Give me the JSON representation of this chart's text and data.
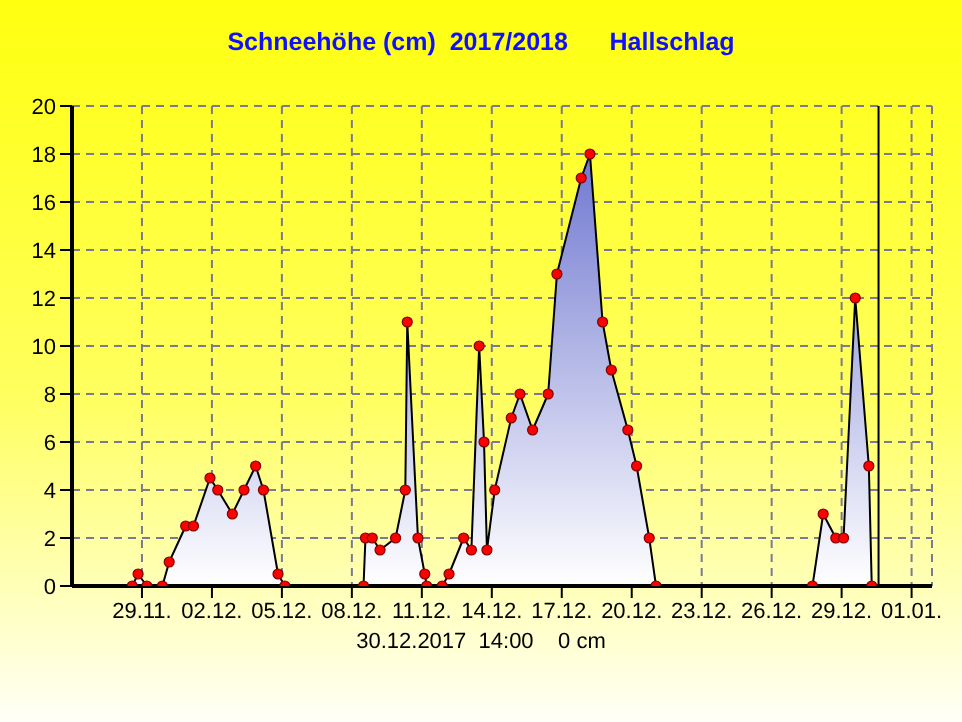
{
  "chart_data": {
    "type": "area",
    "title": "Schneehöhe (cm)  2017/2018      Hallschlag",
    "x": [
      "2017-11-28T14:00",
      "2017-11-28T20:00",
      "2017-11-29T05:00",
      "2017-11-29T21:00",
      "2017-11-30T04:00",
      "2017-11-30T21:00",
      "2017-12-01T05:00",
      "2017-12-01T22:00",
      "2017-12-02T06:00",
      "2017-12-02T21:00",
      "2017-12-03T09:00",
      "2017-12-03T21:00",
      "2017-12-04T05:00",
      "2017-12-04T20:00",
      "2017-12-05T03:00",
      "2017-12-08T12:00",
      "2017-12-08T14:00",
      "2017-12-08T21:00",
      "2017-12-09T05:00",
      "2017-12-09T21:00",
      "2017-12-10T07:00",
      "2017-12-10T09:00",
      "2017-12-10T20:00",
      "2017-12-11T03:00",
      "2017-12-11T05:00",
      "2017-12-11T21:00",
      "2017-12-12T04:00",
      "2017-12-12T19:00",
      "2017-12-13T03:00",
      "2017-12-13T11:00",
      "2017-12-13T16:00",
      "2017-12-13T19:00",
      "2017-12-14T03:00",
      "2017-12-14T20:00",
      "2017-12-15T05:00",
      "2017-12-15T18:00",
      "2017-12-16T10:00",
      "2017-12-16T19:00",
      "2017-12-17T20:00",
      "2017-12-18T05:00",
      "2017-12-18T18:00",
      "2017-12-19T03:00",
      "2017-12-19T20:00",
      "2017-12-20T05:00",
      "2017-12-20T18:00",
      "2017-12-21T01:00",
      "2017-12-27T18:00",
      "2017-12-28T05:00",
      "2017-12-28T18:00",
      "2017-12-29T02:00",
      "2017-12-29T14:00",
      "2017-12-30T04:00",
      "2017-12-30T07:00"
    ],
    "values": [
      0,
      0.5,
      0,
      0,
      1,
      2.5,
      2.5,
      4.5,
      4,
      3,
      4,
      5,
      4,
      0.5,
      0,
      0,
      2,
      2,
      1.5,
      2,
      4,
      11,
      2,
      0.5,
      0,
      0,
      0.5,
      2,
      1.5,
      10,
      6,
      1.5,
      4,
      7,
      8,
      6.5,
      8,
      13,
      17,
      18,
      11,
      9,
      6.5,
      5,
      2,
      0,
      0,
      3,
      2,
      2,
      12,
      5,
      0
    ],
    "color": "#7078d0",
    "marker": "circle",
    "xlim": [
      "2017-11-26T00:00",
      "2018-01-01T21:00"
    ],
    "xticks": [
      {
        "value": "2017-11-29",
        "label": "29.11."
      },
      {
        "value": "2017-12-02",
        "label": "02.12."
      },
      {
        "value": "2017-12-05",
        "label": "05.12."
      },
      {
        "value": "2017-12-08",
        "label": "08.12."
      },
      {
        "value": "2017-12-11",
        "label": "11.12."
      },
      {
        "value": "2017-12-14",
        "label": "14.12."
      },
      {
        "value": "2017-12-17",
        "label": "17.12."
      },
      {
        "value": "2017-12-20",
        "label": "20.12."
      },
      {
        "value": "2017-12-23",
        "label": "23.12."
      },
      {
        "value": "2017-12-26",
        "label": "26.12."
      },
      {
        "value": "2017-12-29",
        "label": "29.12."
      },
      {
        "value": "2018-01-01",
        "label": "01.01."
      }
    ],
    "ylim": [
      0,
      20
    ],
    "yticks": [
      0,
      2,
      4,
      6,
      8,
      10,
      12,
      14,
      16,
      18,
      20
    ],
    "grid": true,
    "ref_lines": [
      {
        "axis": "x",
        "value": "2017-12-30T14:00",
        "color": "#000000"
      }
    ],
    "annotations": [
      "30.12.2017  14:00    0 cm"
    ]
  }
}
